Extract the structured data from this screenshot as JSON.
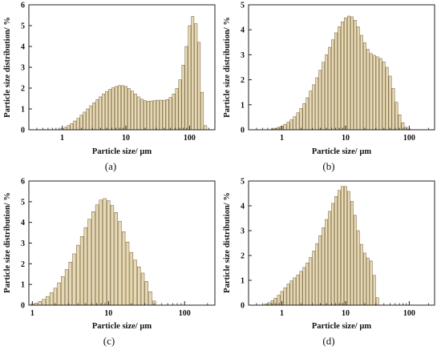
{
  "figure": {
    "bar_fill": "#e8d9b3",
    "bar_stroke": "#6b5a33",
    "panels": [
      {
        "label": "(a)",
        "xlabel": "Particle size/ µm",
        "ylabel": "Particle size distribution/ %"
      },
      {
        "label": "(b)",
        "xlabel": "Particle size/ µm",
        "ylabel": "Particle size distribution/ %"
      },
      {
        "label": "(c)",
        "xlabel": "Particle size/ µm",
        "ylabel": "Particle size distribution/ %"
      },
      {
        "label": "(d)",
        "xlabel": "Particle size/ µm",
        "ylabel": "Particle size distribution/ %"
      }
    ]
  },
  "chart_data": [
    {
      "type": "bar",
      "panel": "(a)",
      "xlabel": "Particle size/ µm",
      "ylabel": "Particle size distribution/ %",
      "xscale": "log",
      "xlim": [
        0.3,
        250
      ],
      "ylim": [
        0,
        6
      ],
      "xticks": [
        "1",
        "10",
        "100"
      ],
      "yticks": [
        "0",
        "1",
        "2",
        "3",
        "4",
        "5",
        "6"
      ],
      "x": [
        1.0,
        1.12,
        1.26,
        1.41,
        1.58,
        1.78,
        2.0,
        2.24,
        2.51,
        2.82,
        3.16,
        3.55,
        3.98,
        4.47,
        5.01,
        5.62,
        6.31,
        7.08,
        7.94,
        8.91,
        10.0,
        11.2,
        12.6,
        14.1,
        15.8,
        17.8,
        20.0,
        22.4,
        25.1,
        28.2,
        31.6,
        35.5,
        39.8,
        44.7,
        50.1,
        56.2,
        63.1,
        70.8,
        79.4,
        89.1,
        100.0,
        112.0,
        126.0,
        141.0,
        158.0,
        178.0
      ],
      "values": [
        0.05,
        0.12,
        0.2,
        0.3,
        0.42,
        0.55,
        0.7,
        0.85,
        1.0,
        1.15,
        1.3,
        1.45,
        1.58,
        1.72,
        1.84,
        1.94,
        2.02,
        2.08,
        2.12,
        2.12,
        2.08,
        1.98,
        1.86,
        1.72,
        1.58,
        1.47,
        1.4,
        1.37,
        1.38,
        1.4,
        1.42,
        1.42,
        1.42,
        1.45,
        1.55,
        1.72,
        1.98,
        2.4,
        3.1,
        4.0,
        5.0,
        5.45,
        5.1,
        4.2,
        1.8,
        0.2
      ]
    },
    {
      "type": "bar",
      "panel": "(b)",
      "xlabel": "Particle size/ µm",
      "ylabel": "Particle size distribution/ %",
      "xscale": "log",
      "xlim": [
        0.3,
        250
      ],
      "ylim": [
        0,
        5
      ],
      "xticks": [
        "1",
        "10",
        "100"
      ],
      "yticks": [
        "0",
        "1",
        "2",
        "3",
        "4",
        "5"
      ],
      "x": [
        0.71,
        0.79,
        0.89,
        1.0,
        1.12,
        1.26,
        1.41,
        1.58,
        1.78,
        2.0,
        2.24,
        2.51,
        2.82,
        3.16,
        3.55,
        3.98,
        4.47,
        5.01,
        5.62,
        6.31,
        7.08,
        7.94,
        8.91,
        10.0,
        11.2,
        12.6,
        14.1,
        15.8,
        17.8,
        20.0,
        22.4,
        25.1,
        28.2,
        31.6,
        35.5,
        39.8,
        44.7,
        50.1,
        56.2,
        63.1,
        70.8,
        79.4,
        89.1,
        100.0
      ],
      "values": [
        0.03,
        0.06,
        0.1,
        0.15,
        0.22,
        0.3,
        0.4,
        0.52,
        0.68,
        0.85,
        1.05,
        1.28,
        1.55,
        1.8,
        2.08,
        2.38,
        2.7,
        3.0,
        3.3,
        3.6,
        3.88,
        4.12,
        4.32,
        4.48,
        4.55,
        4.52,
        4.38,
        4.12,
        3.78,
        3.48,
        3.22,
        3.05,
        2.98,
        2.92,
        2.85,
        2.72,
        2.5,
        2.15,
        1.65,
        1.1,
        0.6,
        0.28,
        0.1,
        0.03
      ]
    },
    {
      "type": "bar",
      "panel": "(c)",
      "xlabel": "Particle size/ µm",
      "ylabel": "Particle size distribution/ %",
      "xscale": "log",
      "xlim": [
        0.9,
        250
      ],
      "ylim": [
        0,
        6
      ],
      "xticks": [
        "1",
        "10",
        "100"
      ],
      "yticks": [
        "0",
        "1",
        "2",
        "3",
        "4",
        "5",
        "6"
      ],
      "x": [
        1.0,
        1.12,
        1.26,
        1.41,
        1.58,
        1.78,
        2.0,
        2.24,
        2.51,
        2.82,
        3.16,
        3.55,
        3.98,
        4.47,
        5.01,
        5.62,
        6.31,
        7.08,
        7.94,
        8.91,
        10.0,
        11.2,
        12.6,
        14.1,
        15.8,
        17.8,
        20.0,
        22.4,
        25.1,
        28.2,
        31.6,
        35.5,
        39.8
      ],
      "values": [
        0.05,
        0.1,
        0.18,
        0.28,
        0.42,
        0.6,
        0.82,
        1.08,
        1.38,
        1.72,
        2.08,
        2.48,
        2.9,
        3.32,
        3.75,
        4.15,
        4.52,
        4.85,
        5.08,
        5.15,
        5.05,
        4.82,
        4.48,
        4.05,
        3.55,
        3.05,
        2.55,
        2.18,
        1.85,
        1.55,
        1.15,
        0.65,
        0.2
      ]
    },
    {
      "type": "bar",
      "panel": "(d)",
      "xlabel": "Particle size/ µm",
      "ylabel": "Particle size distribution/ %",
      "xscale": "log",
      "xlim": [
        0.3,
        250
      ],
      "ylim": [
        0,
        5
      ],
      "xticks": [
        "1",
        "10",
        "100"
      ],
      "yticks": [
        "0",
        "1",
        "2",
        "3",
        "4",
        "5"
      ],
      "x": [
        0.56,
        0.63,
        0.71,
        0.79,
        0.89,
        1.0,
        1.12,
        1.26,
        1.41,
        1.58,
        1.78,
        2.0,
        2.24,
        2.51,
        2.82,
        3.16,
        3.55,
        3.98,
        4.47,
        5.01,
        5.62,
        6.31,
        7.08,
        7.94,
        8.91,
        10.0,
        11.2,
        12.6,
        14.1,
        15.8,
        17.8,
        20.0,
        22.4,
        25.1,
        28.2,
        31.6
      ],
      "values": [
        0.05,
        0.1,
        0.18,
        0.28,
        0.4,
        0.55,
        0.7,
        0.85,
        0.98,
        1.1,
        1.22,
        1.36,
        1.52,
        1.7,
        1.92,
        2.18,
        2.48,
        2.8,
        3.12,
        3.45,
        3.78,
        4.1,
        4.38,
        4.62,
        4.78,
        4.78,
        4.58,
        4.18,
        3.62,
        3.0,
        2.45,
        2.1,
        1.9,
        1.78,
        1.2,
        0.3
      ]
    }
  ]
}
